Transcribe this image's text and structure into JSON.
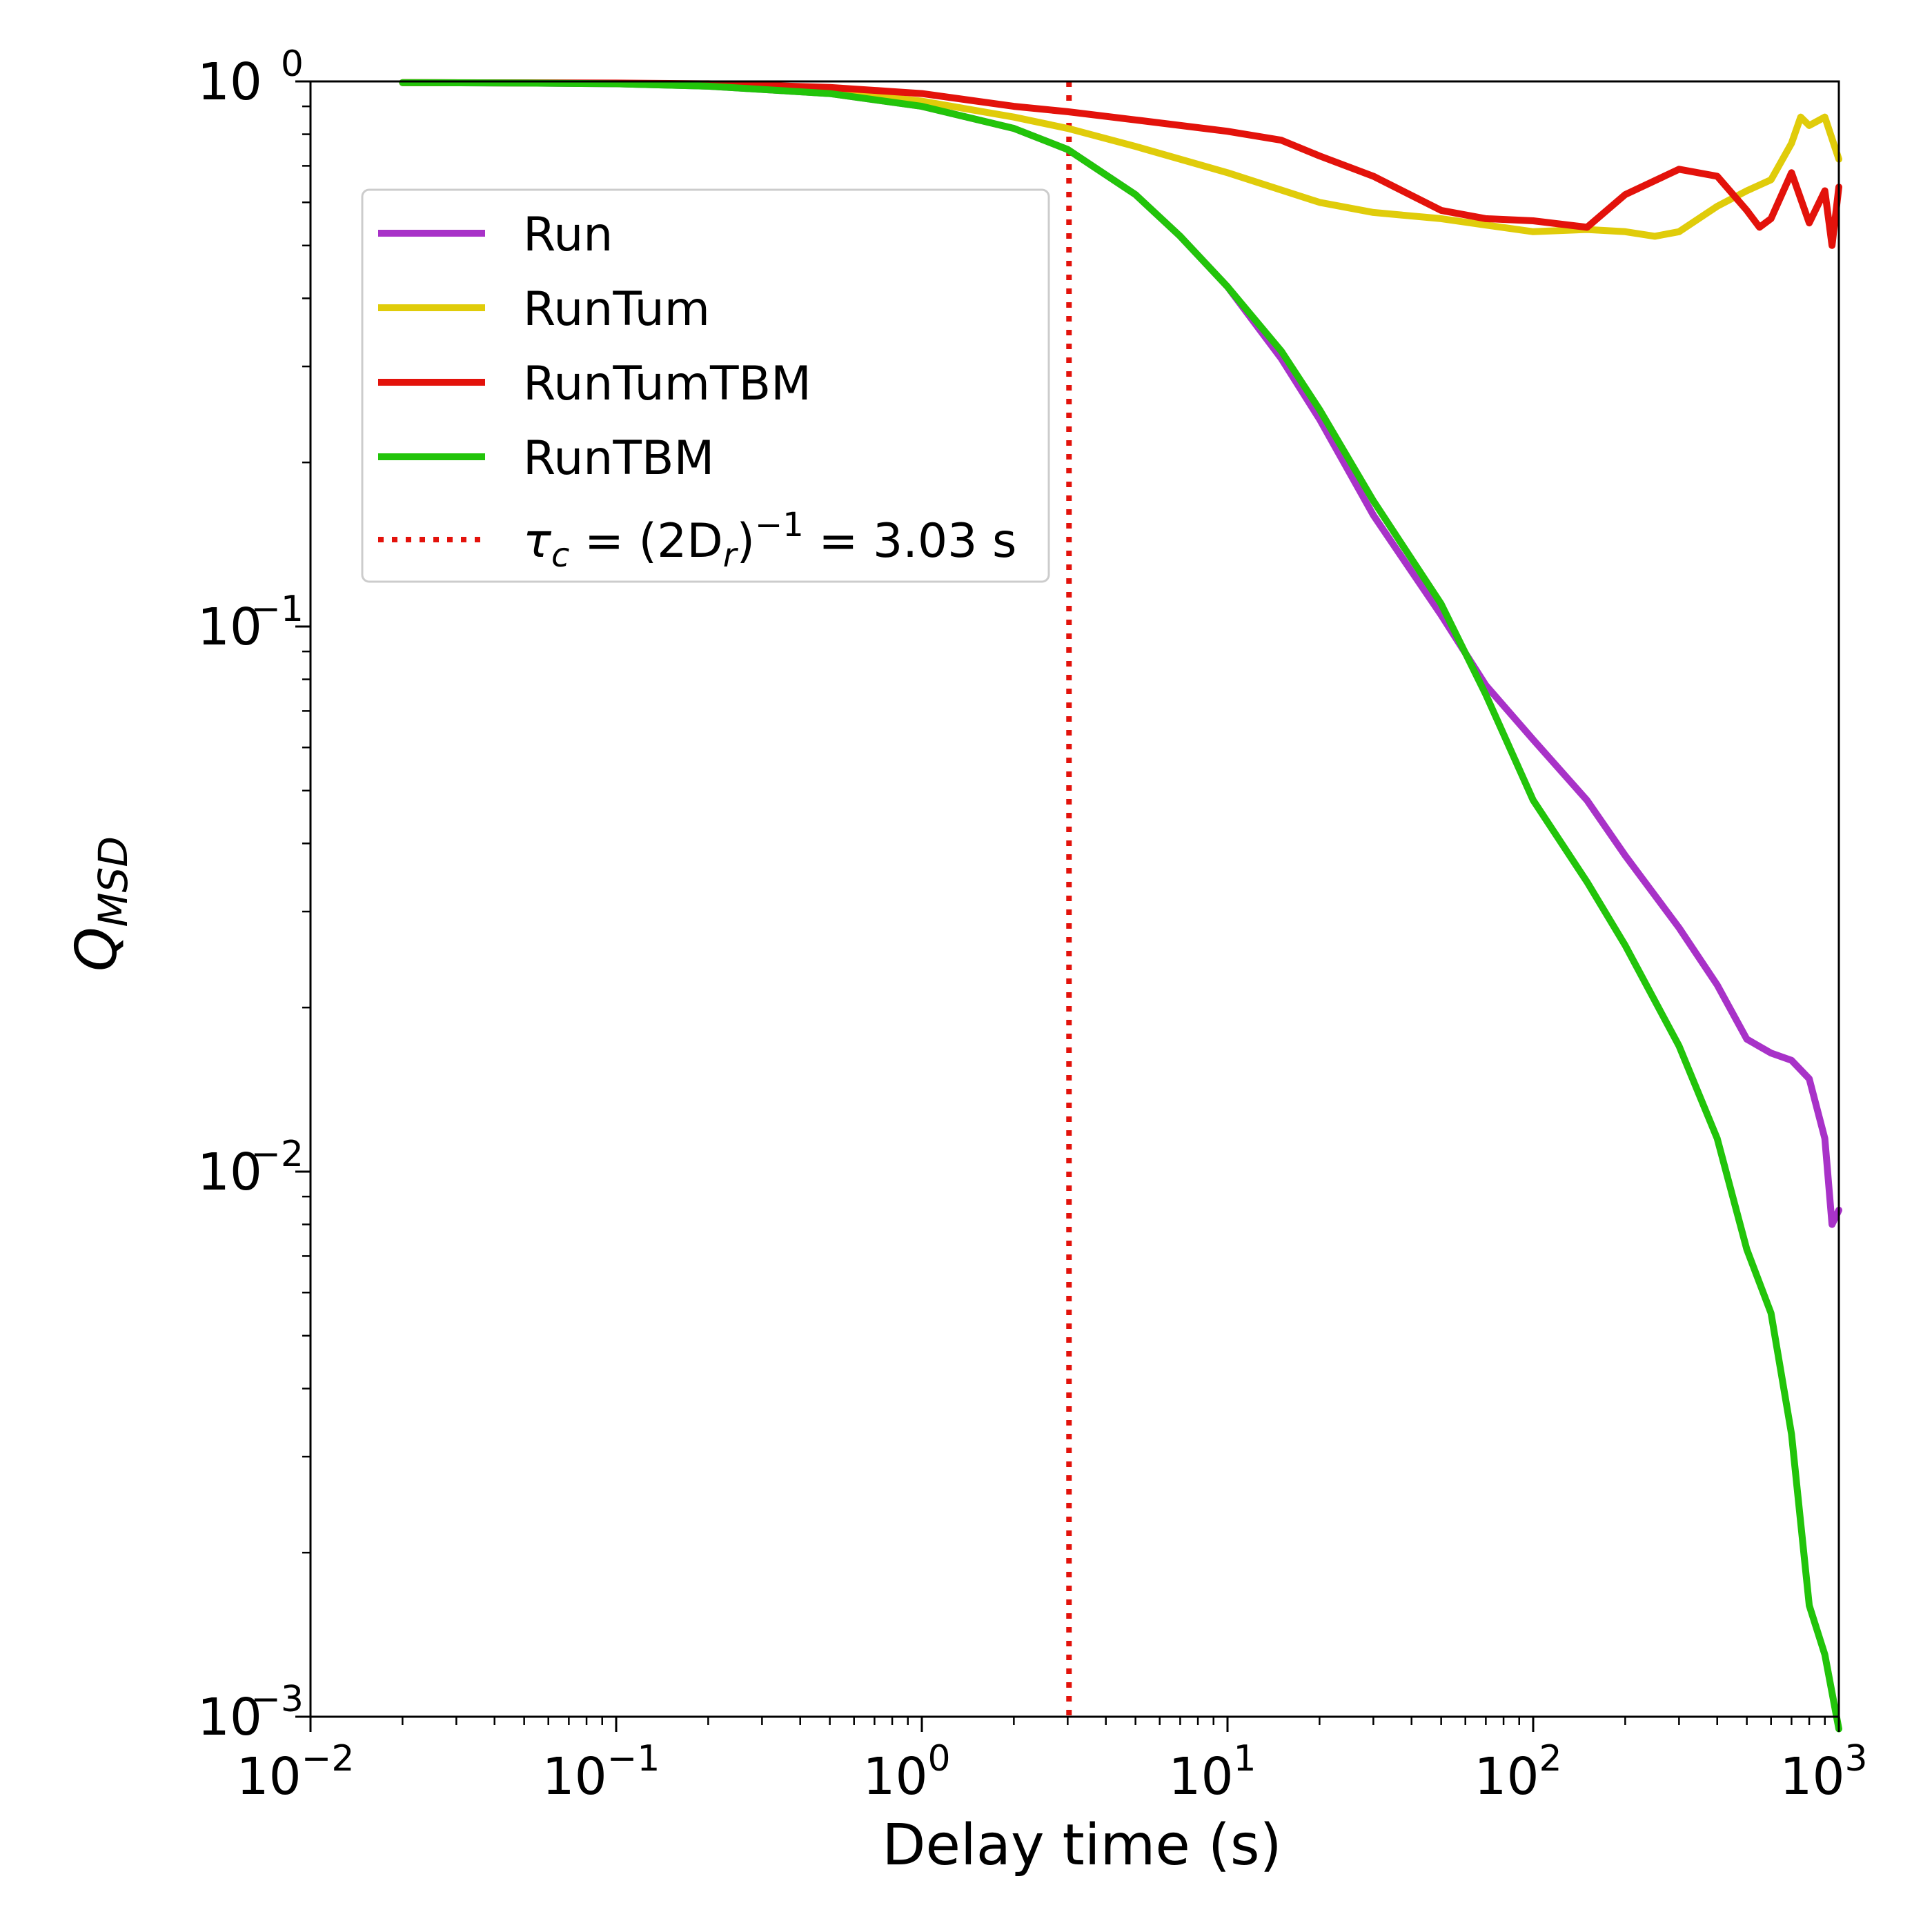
{
  "chart_data": {
    "type": "line",
    "xlabel": "Delay time (s)",
    "ylabel": "Q",
    "ylabel_sub": "MSD",
    "x_scale": "log",
    "y_scale": "log",
    "xlim": [
      0.01,
      1000
    ],
    "ylim": [
      0.001,
      1
    ],
    "x_ticks": [
      {
        "value": 0.01,
        "base": "10",
        "exp": "−2"
      },
      {
        "value": 0.1,
        "base": "10",
        "exp": "−1"
      },
      {
        "value": 1,
        "base": "10",
        "exp": "0"
      },
      {
        "value": 10,
        "base": "10",
        "exp": "1"
      },
      {
        "value": 100,
        "base": "10",
        "exp": "2"
      },
      {
        "value": 1000,
        "base": "10",
        "exp": "3"
      }
    ],
    "y_ticks": [
      {
        "value": 0.001,
        "base": "10",
        "exp": "−3"
      },
      {
        "value": 0.01,
        "base": "10",
        "exp": "−2"
      },
      {
        "value": 0.1,
        "base": "10",
        "exp": "−1"
      },
      {
        "value": 1,
        "base": "10",
        "exp": "0"
      }
    ],
    "grid": false,
    "legend_position": "upper-left",
    "series": [
      {
        "name": "Run",
        "color": "#a832c8",
        "points": [
          [
            0.02,
            0.995
          ],
          [
            0.05,
            0.993
          ],
          [
            0.1,
            0.99
          ],
          [
            0.2,
            0.98
          ],
          [
            0.5,
            0.95
          ],
          [
            1,
            0.9
          ],
          [
            2,
            0.82
          ],
          [
            3,
            0.75
          ],
          [
            5,
            0.62
          ],
          [
            7,
            0.52
          ],
          [
            10,
            0.42
          ],
          [
            15,
            0.31
          ],
          [
            20,
            0.24
          ],
          [
            30,
            0.16
          ],
          [
            50,
            0.105
          ],
          [
            70,
            0.078
          ],
          [
            100,
            0.062
          ],
          [
            150,
            0.048
          ],
          [
            200,
            0.038
          ],
          [
            300,
            0.028
          ],
          [
            400,
            0.022
          ],
          [
            500,
            0.0175
          ],
          [
            600,
            0.0165
          ],
          [
            700,
            0.016
          ],
          [
            800,
            0.0148
          ],
          [
            900,
            0.0115
          ],
          [
            950,
            0.008
          ],
          [
            1000,
            0.0085
          ]
        ]
      },
      {
        "name": "RunTum",
        "color": "#e0cc0a",
        "points": [
          [
            0.02,
            0.995
          ],
          [
            0.05,
            0.994
          ],
          [
            0.1,
            0.992
          ],
          [
            0.2,
            0.985
          ],
          [
            0.5,
            0.96
          ],
          [
            1,
            0.92
          ],
          [
            2,
            0.86
          ],
          [
            3,
            0.82
          ],
          [
            5,
            0.76
          ],
          [
            10,
            0.68
          ],
          [
            20,
            0.6
          ],
          [
            30,
            0.575
          ],
          [
            50,
            0.56
          ],
          [
            70,
            0.545
          ],
          [
            100,
            0.53
          ],
          [
            150,
            0.535
          ],
          [
            200,
            0.53
          ],
          [
            250,
            0.52
          ],
          [
            300,
            0.53
          ],
          [
            400,
            0.59
          ],
          [
            500,
            0.63
          ],
          [
            600,
            0.66
          ],
          [
            700,
            0.77
          ],
          [
            750,
            0.86
          ],
          [
            800,
            0.83
          ],
          [
            900,
            0.86
          ],
          [
            1000,
            0.72
          ]
        ]
      },
      {
        "name": "RunTumTBM",
        "color": "#e3120b",
        "points": [
          [
            0.02,
            0.995
          ],
          [
            0.05,
            0.994
          ],
          [
            0.1,
            0.993
          ],
          [
            0.2,
            0.99
          ],
          [
            0.5,
            0.975
          ],
          [
            1,
            0.95
          ],
          [
            2,
            0.9
          ],
          [
            3,
            0.88
          ],
          [
            5,
            0.85
          ],
          [
            10,
            0.81
          ],
          [
            15,
            0.78
          ],
          [
            20,
            0.73
          ],
          [
            30,
            0.67
          ],
          [
            50,
            0.58
          ],
          [
            70,
            0.56
          ],
          [
            100,
            0.555
          ],
          [
            150,
            0.54
          ],
          [
            200,
            0.62
          ],
          [
            300,
            0.69
          ],
          [
            400,
            0.67
          ],
          [
            500,
            0.58
          ],
          [
            550,
            0.54
          ],
          [
            600,
            0.56
          ],
          [
            700,
            0.68
          ],
          [
            800,
            0.55
          ],
          [
            900,
            0.63
          ],
          [
            950,
            0.5
          ],
          [
            1000,
            0.64
          ]
        ]
      },
      {
        "name": "RunTBM",
        "color": "#22c40a",
        "points": [
          [
            0.02,
            0.995
          ],
          [
            0.05,
            0.993
          ],
          [
            0.1,
            0.99
          ],
          [
            0.2,
            0.98
          ],
          [
            0.5,
            0.95
          ],
          [
            1,
            0.9
          ],
          [
            2,
            0.82
          ],
          [
            3,
            0.75
          ],
          [
            5,
            0.62
          ],
          [
            7,
            0.52
          ],
          [
            10,
            0.42
          ],
          [
            15,
            0.32
          ],
          [
            20,
            0.25
          ],
          [
            30,
            0.17
          ],
          [
            50,
            0.11
          ],
          [
            70,
            0.075
          ],
          [
            100,
            0.048
          ],
          [
            150,
            0.034
          ],
          [
            200,
            0.026
          ],
          [
            300,
            0.017
          ],
          [
            400,
            0.0115
          ],
          [
            500,
            0.0072
          ],
          [
            600,
            0.0055
          ],
          [
            700,
            0.0033
          ],
          [
            800,
            0.0016
          ],
          [
            900,
            0.0013
          ],
          [
            1000,
            0.00095
          ]
        ]
      }
    ],
    "vline": {
      "x": 3.03,
      "color": "#e3120b",
      "style": "dotted",
      "label_parts": [
        "τ",
        "c",
        " = (2D",
        "r",
        ")",
        "−1",
        " = 3.03 s"
      ]
    },
    "legend": [
      "Run",
      "RunTum",
      "RunTumTBM",
      "RunTBM",
      "τc = (2Dr)−1 = 3.03 s"
    ]
  }
}
